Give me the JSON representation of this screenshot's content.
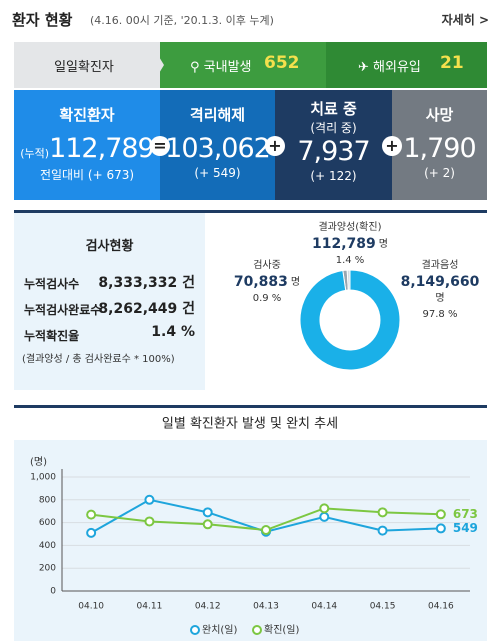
{
  "header": {
    "title": "환자 현황",
    "subtitle": "(4.16. 00시 기준, '20.1.3. 이후 누계)",
    "more": "자세히 >"
  },
  "tabs": {
    "label": "일일확진자",
    "items": [
      {
        "label": "국내발생",
        "value": 652
      },
      {
        "label": "해외유입",
        "value": 21
      }
    ]
  },
  "stats": [
    {
      "label": "확진환자",
      "prefix": "(누적)",
      "value": "112,789",
      "change": "전일대비 (+ 673)"
    },
    {
      "label": "격리해제",
      "value": "103,062",
      "change": "(+ 549)"
    },
    {
      "label": "치료 중",
      "sublabel": "(격리 중)",
      "value": "7,937",
      "change": "(+ 122)"
    },
    {
      "label": "사망",
      "value": "1,790",
      "change": "(+ 2)"
    }
  ],
  "tests": {
    "title": "검사현황",
    "rows": [
      [
        "누적검사수",
        "8,333,332 건"
      ],
      [
        "누적검사완료수",
        "8,262,449 건"
      ],
      [
        "누적확진율",
        "1.4 %"
      ]
    ],
    "note": "(결과양성 / 총 검사완료수 * 100%)"
  },
  "chart_data": [
    {
      "type": "pie",
      "categories": [
        "결과양성(확진)",
        "검사중",
        "결과음성"
      ],
      "values": [
        1.4,
        0.9,
        97.8
      ],
      "value_labels": [
        "1.4 %",
        "0.9 %",
        "97.8 %"
      ],
      "counts": [
        "112,789",
        "70,883",
        "8,149,660"
      ],
      "unit": "명",
      "colors": [
        "#9aa6b0",
        "#d5dde3",
        "#1ab0e8"
      ]
    },
    {
      "type": "line",
      "title": "일별 확진환자 발생 및 완치 추세",
      "y_unit": "(명)",
      "x": [
        "04.10",
        "04.11",
        "04.12",
        "04.13",
        "04.14",
        "04.15",
        "04.16"
      ],
      "series": [
        {
          "name": "완치(일)",
          "color": "#1ea5dc",
          "values": [
            510,
            800,
            690,
            520,
            650,
            530,
            549
          ]
        },
        {
          "name": "확진(일)",
          "color": "#7cc742",
          "values": [
            670,
            610,
            585,
            535,
            725,
            690,
            673
          ]
        }
      ],
      "ylim": [
        0,
        1000
      ],
      "yticks": [
        0,
        200,
        400,
        600,
        800,
        {
          "value": 1000,
          "label": "1,000"
        }
      ],
      "grid": true
    }
  ]
}
